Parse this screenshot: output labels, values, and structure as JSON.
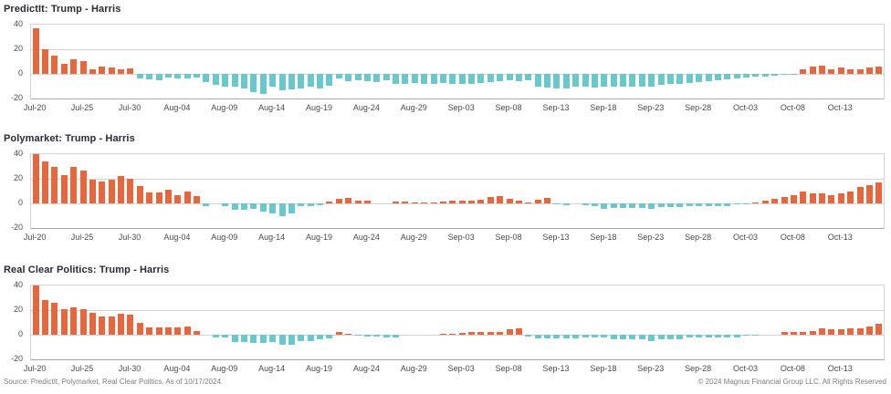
{
  "footer": {
    "source": "Source: PredictIt, Polymarket, Real Clear Politics. As of 10/17/2024.",
    "copyright": "© 2024 Magnus Financial Group LLC. All Rights Reserved"
  },
  "colors": {
    "positive_bar": "#e8663c",
    "negative_bar": "#68c8cc",
    "gridline": "#d2d2d2",
    "plot_border": "#d4d4d4",
    "axis_bottom": "#a8a8a8",
    "title_text": "#2b2b33",
    "tick_text": "#4a4a4a",
    "footer_text": "#7d7d7d"
  },
  "chart_data": {
    "type": "bar",
    "note": "three small-multiple daily bar charts of Trump minus Harris spread; positive bars orange, negative bars teal",
    "ylim": [
      -20,
      40
    ],
    "y_ticks": [
      40,
      20,
      0,
      -20
    ],
    "grid": true,
    "x_tick_every": 5,
    "x_tick_labels": [
      "Jul-20",
      "Jul-25",
      "Jul-30",
      "Aug-04",
      "Aug-09",
      "Aug-14",
      "Aug-19",
      "Aug-24",
      "Aug-29",
      "Sep-03",
      "Sep-08",
      "Sep-13",
      "Sep-18",
      "Sep-23",
      "Sep-28",
      "Oct-03",
      "Oct-08",
      "Oct-13"
    ],
    "categories": [
      "Jul-20",
      "Jul-21",
      "Jul-22",
      "Jul-23",
      "Jul-24",
      "Jul-25",
      "Jul-26",
      "Jul-27",
      "Jul-28",
      "Jul-29",
      "Jul-30",
      "Jul-31",
      "Aug-01",
      "Aug-02",
      "Aug-03",
      "Aug-04",
      "Aug-05",
      "Aug-06",
      "Aug-07",
      "Aug-08",
      "Aug-09",
      "Aug-10",
      "Aug-11",
      "Aug-12",
      "Aug-13",
      "Aug-14",
      "Aug-15",
      "Aug-16",
      "Aug-17",
      "Aug-18",
      "Aug-19",
      "Aug-20",
      "Aug-21",
      "Aug-22",
      "Aug-23",
      "Aug-24",
      "Aug-25",
      "Aug-26",
      "Aug-27",
      "Aug-28",
      "Aug-29",
      "Aug-30",
      "Aug-31",
      "Sep-01",
      "Sep-02",
      "Sep-03",
      "Sep-04",
      "Sep-05",
      "Sep-06",
      "Sep-07",
      "Sep-08",
      "Sep-09",
      "Sep-10",
      "Sep-11",
      "Sep-12",
      "Sep-13",
      "Sep-14",
      "Sep-15",
      "Sep-16",
      "Sep-17",
      "Sep-18",
      "Sep-19",
      "Sep-20",
      "Sep-21",
      "Sep-22",
      "Sep-23",
      "Sep-24",
      "Sep-25",
      "Sep-26",
      "Sep-27",
      "Sep-28",
      "Sep-29",
      "Sep-30",
      "Oct-01",
      "Oct-02",
      "Oct-03",
      "Oct-04",
      "Oct-05",
      "Oct-06",
      "Oct-07",
      "Oct-08",
      "Oct-09",
      "Oct-10",
      "Oct-11",
      "Oct-12",
      "Oct-13",
      "Oct-14",
      "Oct-15",
      "Oct-16",
      "Oct-17"
    ],
    "charts": [
      {
        "title": "PredictIt: Trump - Harris",
        "values": [
          37,
          20,
          15,
          8.5,
          12,
          10.5,
          3.5,
          6,
          5.5,
          4,
          4.5,
          -3.5,
          -4.5,
          -5,
          -3,
          -4,
          -4,
          -3,
          -7,
          -9,
          -10.5,
          -10.5,
          -11.5,
          -14.5,
          -16,
          -10,
          -13,
          -12.5,
          -12,
          -10.5,
          -12,
          -9.5,
          -3.5,
          -6,
          -5,
          -6,
          -6.5,
          -5.5,
          -8,
          -8.5,
          -7.5,
          -8.5,
          -8,
          -7.5,
          -8,
          -8.5,
          -8,
          -7.5,
          -7,
          -6,
          -5,
          -6,
          -5.5,
          -10.5,
          -11,
          -11.5,
          -11.5,
          -10.5,
          -10.5,
          -11,
          -10.5,
          -10.5,
          -10,
          -10,
          -10,
          -10,
          -9,
          -8.5,
          -8,
          -7.5,
          -7,
          -6,
          -5,
          -4.5,
          -4,
          -3,
          -2.5,
          -2,
          -1.5,
          -1,
          -1,
          3.5,
          6,
          6.5,
          4,
          5,
          4,
          4,
          5,
          6
        ]
      },
      {
        "title": "Polymarket: Trump - Harris",
        "values": [
          40,
          34,
          30,
          23,
          30,
          27,
          19,
          18,
          19,
          22,
          20,
          14,
          9,
          9,
          11,
          7,
          10,
          6,
          -2.5,
          0,
          -2.5,
          -5.5,
          -5.5,
          -4.5,
          -7,
          -8,
          -10,
          -8,
          -2,
          -2,
          -1.5,
          1.5,
          4,
          4.5,
          2,
          2.5,
          0,
          0,
          1.5,
          1.5,
          1,
          1,
          1,
          1.5,
          2,
          2.5,
          2,
          3,
          5.5,
          6,
          3.5,
          2,
          1,
          3,
          4.5,
          -1,
          -1.5,
          0,
          -1.5,
          -2.5,
          -4.5,
          -3.5,
          -3.5,
          -3.5,
          -3.5,
          -4.5,
          -3,
          -3,
          -3,
          -2.5,
          -2.5,
          -2.5,
          -2.5,
          -2,
          -1,
          -0.5,
          1,
          2,
          3.5,
          5,
          7,
          10,
          8.5,
          8,
          7,
          8,
          10,
          13,
          15,
          17
        ]
      },
      {
        "title": "Real Clear Politics: Trump - Harris",
        "values": [
          40,
          28,
          26,
          21,
          22.5,
          21,
          18,
          15,
          15,
          17,
          16,
          10,
          6,
          6,
          6,
          6,
          7,
          3,
          0,
          -2,
          -2,
          -6,
          -6,
          -7,
          -7,
          -6,
          -8,
          -8,
          -5,
          -5,
          -4,
          -3,
          2,
          1,
          -1,
          -1.5,
          -1.5,
          -2.5,
          -2.5,
          0,
          0,
          0,
          0,
          1,
          1,
          1.5,
          2,
          2,
          2,
          2,
          4.5,
          5.5,
          -1.5,
          -3,
          -3,
          -3,
          -3,
          -3,
          -2,
          -2,
          -2,
          -4,
          -4,
          -4,
          -4,
          -5,
          -4,
          -4,
          -4,
          -2,
          -2,
          -2,
          -2,
          -2,
          -2,
          -1,
          -0.5,
          0,
          0,
          2.5,
          2,
          2.5,
          3,
          5,
          4.5,
          4.5,
          5,
          5.5,
          6.5,
          9
        ]
      }
    ]
  }
}
